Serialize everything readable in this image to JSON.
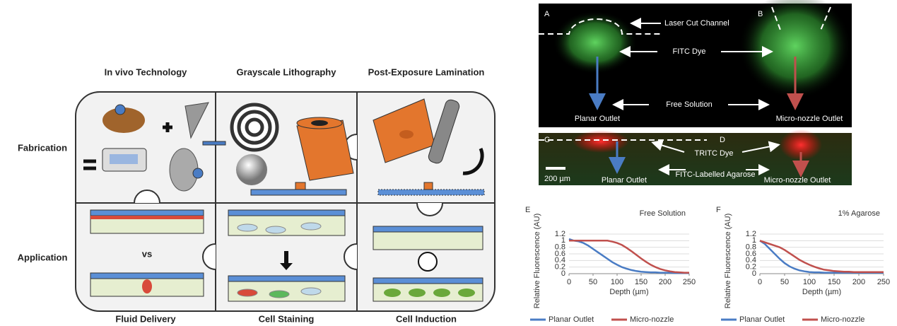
{
  "figure": {
    "top_labels": [
      "In vivo Technology",
      "Grayscale Lithography",
      "Post-Exposure Lamination"
    ],
    "row_labels": [
      "Fabrication",
      "Application"
    ],
    "vs": "vs",
    "bottom_labels": [
      "Fluid Delivery",
      "Cell Staining",
      "Cell Induction"
    ]
  },
  "images": {
    "top": {
      "left_letter": "A",
      "right_letter": "B",
      "labels": [
        "Laser Cut Channel",
        "FITC Dye",
        "Free Solution",
        "Planar Outlet",
        "Micro-nozzle Outlet"
      ]
    },
    "bottom": {
      "left_letter": "C",
      "right_letter": "D",
      "labels": [
        "TRITC Dye",
        "FITC-Labelled Agarose",
        "Planar Outlet",
        "Micro-nozzle Outlet"
      ],
      "scale_bar": "200 µm"
    }
  },
  "chart_data": [
    {
      "type": "line",
      "label": "E",
      "annotation": "Free Solution",
      "x_label": "Depth (µm)",
      "y_label": "Relative Fluorescence (AU)",
      "x": [
        0,
        10,
        20,
        30,
        40,
        50,
        60,
        70,
        80,
        90,
        100,
        110,
        120,
        130,
        140,
        150,
        160,
        170,
        180,
        190,
        200,
        210,
        220,
        230,
        240,
        250
      ],
      "series": [
        {
          "name": "Planar Outlet",
          "color": "#4a7cc4",
          "values": [
            1.05,
            1.0,
            0.98,
            0.93,
            0.85,
            0.75,
            0.65,
            0.55,
            0.45,
            0.35,
            0.27,
            0.2,
            0.15,
            0.11,
            0.08,
            0.06,
            0.05,
            0.04,
            0.04,
            0.03,
            0.03,
            0.03,
            0.02,
            0.02,
            0.02,
            0.02
          ]
        },
        {
          "name": "Micro-nozzle",
          "color": "#c0504d",
          "values": [
            1.0,
            1.0,
            1.0,
            1.0,
            1.0,
            1.0,
            1.0,
            1.0,
            1.0,
            0.97,
            0.93,
            0.87,
            0.78,
            0.68,
            0.57,
            0.46,
            0.36,
            0.27,
            0.2,
            0.14,
            0.1,
            0.07,
            0.05,
            0.04,
            0.03,
            0.03
          ]
        }
      ],
      "xlim": [
        0,
        250
      ],
      "xticks": [
        0,
        50,
        100,
        150,
        200,
        250
      ],
      "ylim": [
        0,
        1.2
      ],
      "yticks": [
        0,
        0.2,
        0.4,
        0.6,
        0.8,
        1,
        1.2
      ],
      "grid": true
    },
    {
      "type": "line",
      "label": "F",
      "annotation": "1% Agarose",
      "x_label": "Depth (µm)",
      "y_label": "Relative Fluorescence (AU)",
      "x": [
        0,
        10,
        20,
        30,
        40,
        50,
        60,
        70,
        80,
        90,
        100,
        110,
        120,
        130,
        140,
        150,
        160,
        170,
        180,
        190,
        200,
        210,
        220,
        230,
        240,
        250
      ],
      "series": [
        {
          "name": "Planar Outlet",
          "color": "#4a7cc4",
          "values": [
            1.0,
            0.9,
            0.75,
            0.6,
            0.45,
            0.32,
            0.22,
            0.15,
            0.1,
            0.07,
            0.05,
            0.04,
            0.04,
            0.03,
            0.03,
            0.03,
            0.03,
            0.03,
            0.03,
            0.03,
            0.03,
            0.03,
            0.03,
            0.03,
            0.03,
            0.03
          ]
        },
        {
          "name": "Micro-nozzle",
          "color": "#c0504d",
          "values": [
            1.0,
            0.95,
            0.9,
            0.85,
            0.8,
            0.72,
            0.62,
            0.52,
            0.42,
            0.34,
            0.27,
            0.21,
            0.16,
            0.12,
            0.1,
            0.08,
            0.07,
            0.06,
            0.06,
            0.05,
            0.05,
            0.05,
            0.05,
            0.05,
            0.05,
            0.05
          ]
        }
      ],
      "xlim": [
        0,
        250
      ],
      "xticks": [
        0,
        50,
        100,
        150,
        200,
        250
      ],
      "ylim": [
        0,
        1.2
      ],
      "yticks": [
        0,
        0.2,
        0.4,
        0.6,
        0.8,
        1,
        1.2
      ],
      "grid": true
    }
  ]
}
